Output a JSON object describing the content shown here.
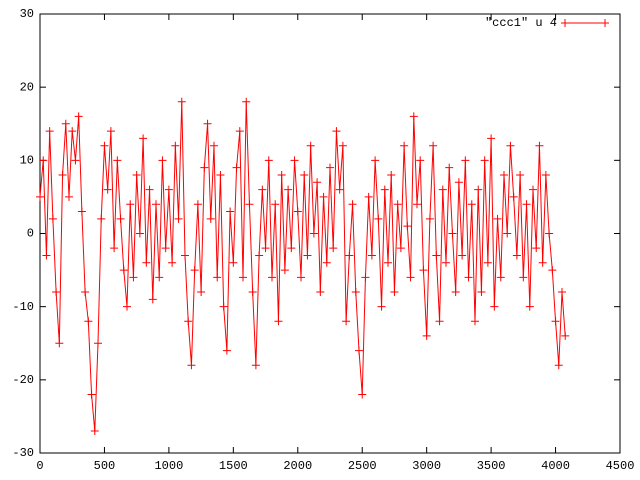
{
  "chart_data": {
    "type": "line",
    "x": [
      0,
      25,
      50,
      75,
      100,
      125,
      150,
      175,
      200,
      225,
      250,
      275,
      300,
      325,
      350,
      375,
      400,
      425,
      450,
      475,
      500,
      525,
      550,
      575,
      600,
      625,
      650,
      675,
      700,
      725,
      750,
      775,
      800,
      825,
      850,
      875,
      900,
      925,
      950,
      975,
      1000,
      1025,
      1050,
      1075,
      1100,
      1125,
      1150,
      1175,
      1200,
      1225,
      1250,
      1275,
      1300,
      1325,
      1350,
      1375,
      1400,
      1425,
      1450,
      1475,
      1500,
      1525,
      1550,
      1575,
      1600,
      1625,
      1650,
      1675,
      1700,
      1725,
      1750,
      1775,
      1800,
      1825,
      1850,
      1875,
      1900,
      1925,
      1950,
      1975,
      2000,
      2025,
      2050,
      2075,
      2100,
      2125,
      2150,
      2175,
      2200,
      2225,
      2250,
      2275,
      2300,
      2325,
      2350,
      2375,
      2400,
      2425,
      2450,
      2475,
      2500,
      2525,
      2550,
      2575,
      2600,
      2625,
      2650,
      2675,
      2700,
      2725,
      2750,
      2775,
      2800,
      2825,
      2850,
      2875,
      2900,
      2925,
      2950,
      2975,
      3000,
      3025,
      3050,
      3075,
      3100,
      3125,
      3150,
      3175,
      3200,
      3225,
      3250,
      3275,
      3300,
      3325,
      3350,
      3375,
      3400,
      3425,
      3450,
      3475,
      3500,
      3525,
      3550,
      3575,
      3600,
      3625,
      3650,
      3675,
      3700,
      3725,
      3750,
      3775,
      3800,
      3825,
      3850,
      3875,
      3900,
      3925,
      3950,
      3975,
      4000,
      4025,
      4050,
      4075
    ],
    "series": [
      {
        "name": "\"ccc1\" u 4",
        "color": "#ff0000",
        "values": [
          5,
          10,
          -3,
          14,
          2,
          -8,
          -15,
          8,
          15,
          5,
          14,
          10,
          16,
          3,
          -8,
          -12,
          -22,
          -27,
          -15,
          2,
          12,
          6,
          14,
          -2,
          10,
          2,
          -5,
          -10,
          4,
          -6,
          8,
          0,
          13,
          -4,
          6,
          -9,
          4,
          -6,
          10,
          -2,
          6,
          -4,
          12,
          2,
          18,
          -3,
          -12,
          -18,
          -5,
          4,
          -8,
          9,
          15,
          2,
          12,
          -6,
          8,
          -10,
          -16,
          3,
          -4,
          9,
          14,
          -6,
          18,
          4,
          -8,
          -18,
          -3,
          6,
          -2,
          10,
          -6,
          4,
          -12,
          8,
          -5,
          6,
          -2,
          10,
          3,
          -6,
          8,
          -3,
          12,
          0,
          7,
          -8,
          5,
          -4,
          9,
          -2,
          14,
          6,
          12,
          -12,
          -3,
          4,
          -8,
          -16,
          -22,
          -6,
          5,
          -3,
          10,
          2,
          -10,
          6,
          -4,
          8,
          -8,
          4,
          -2,
          12,
          1,
          -6,
          16,
          4,
          10,
          -5,
          -14,
          2,
          12,
          -3,
          -12,
          6,
          -4,
          9,
          0,
          -8,
          7,
          -3,
          10,
          -6,
          4,
          -12,
          6,
          -8,
          10,
          -4,
          13,
          -10,
          2,
          -6,
          8,
          0,
          12,
          5,
          -3,
          8,
          -6,
          4,
          -10,
          6,
          -2,
          12,
          -4,
          8,
          0,
          -5,
          -12,
          -18,
          -8,
          -14
        ]
      }
    ],
    "xlim": [
      0,
      4500
    ],
    "xticks": [
      0,
      500,
      1000,
      1500,
      2000,
      2500,
      3000,
      3500,
      4000,
      4500
    ],
    "ylim": [
      -30,
      30
    ],
    "yticks": [
      -30,
      -20,
      -10,
      0,
      10,
      20,
      30
    ],
    "legend": "top-right",
    "grid": false
  }
}
